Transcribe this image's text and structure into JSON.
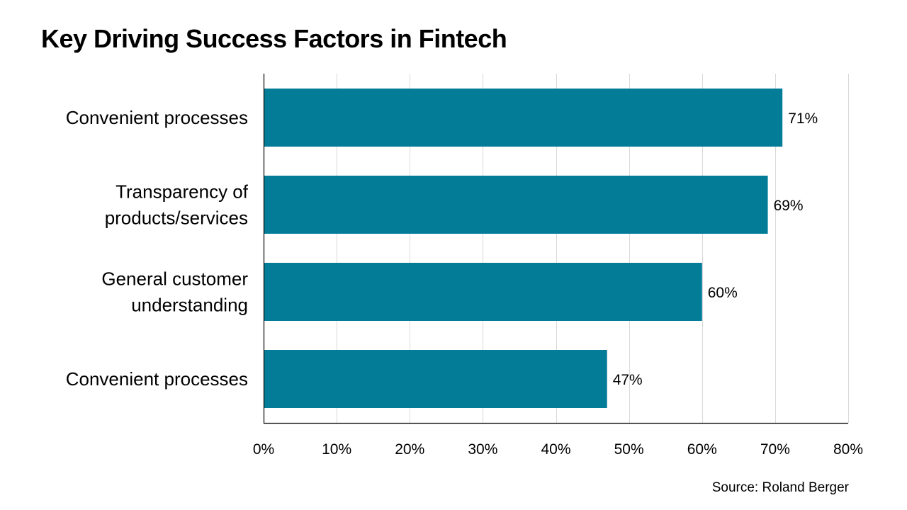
{
  "chart_data": {
    "type": "bar",
    "orientation": "horizontal",
    "title": "Key Driving Success Factors in Fintech",
    "categories": [
      [
        "Convenient processes"
      ],
      [
        "Transparency of",
        "products/services"
      ],
      [
        "General customer",
        "understanding"
      ],
      [
        "Convenient processes"
      ]
    ],
    "values": [
      71,
      69,
      60,
      47
    ],
    "data_labels": [
      "71%",
      "69%",
      "60%",
      "47%"
    ],
    "xlim": [
      0,
      80
    ],
    "x_ticks": [
      0,
      10,
      20,
      30,
      40,
      50,
      60,
      70,
      80
    ],
    "x_tick_labels": [
      "0%",
      "10%",
      "20%",
      "30%",
      "40%",
      "50%",
      "60%",
      "70%",
      "80%"
    ],
    "xlabel": "",
    "ylabel": "",
    "grid": "vertical",
    "legend": "none",
    "bar_color": "#037C98",
    "gridline_color": "#D9D9D9"
  },
  "source": "Source: Roland Berger"
}
